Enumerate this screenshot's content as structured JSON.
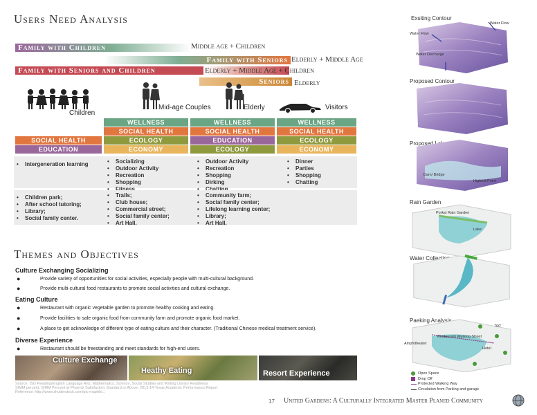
{
  "title": "Users Need Analysis",
  "bars": [
    {
      "label": "Family with Children",
      "desc": "Middle age + Children"
    },
    {
      "label": "Family with Seniors",
      "desc": "Elderly + Middle Age"
    },
    {
      "label": "Family with Seniors and Children",
      "desc": "Elderly + Middle Age + Children"
    },
    {
      "label": "Seniors",
      "desc": "Elderly"
    }
  ],
  "groups": {
    "children": "Children",
    "couples": "Mid-age Couples",
    "elderly": "Elderly",
    "visitors": "Visitors"
  },
  "tags": {
    "wellness": "WELLNESS",
    "social_health": "SOCIAL HEALTH",
    "ecology": "ECOLOGY",
    "education": "EDUCATION",
    "economy": "ECONOMY"
  },
  "activities": {
    "children": [
      "Intergeneration learning"
    ],
    "couples": [
      "Socializing",
      "Outdoor Activity",
      "Recreation",
      "Shopping",
      "Fitness"
    ],
    "elderly": [
      "Outdoor Activity",
      "Recreation",
      "Shopping",
      "Dirking",
      "Chatting"
    ],
    "visitors": [
      "Dinner",
      "Parties",
      "Shopping",
      "Chatting"
    ]
  },
  "facilities": {
    "children": [
      "Children park;",
      "After school tutoring;",
      "Library;",
      "Social family center."
    ],
    "couples": [
      "Trails;",
      "Club house;",
      "Commercial street;",
      "Social family center;",
      "Art Hall."
    ],
    "elderly": [
      "Community farm;",
      "Social family center;",
      "Lifelong learning center;",
      "Library;",
      "Art Hall."
    ]
  },
  "themes_title": "Themes and Objectives",
  "themes": [
    {
      "heading": "Culture Exchanging Socializing",
      "items": [
        "Provide variety of  opportunities for social activities, especially people with multi-cultural background.",
        "Provide multi-cultural food restaurants to promote  social activities and cultural exchange."
      ]
    },
    {
      "heading": "Eating Culture",
      "items": [
        "Restaurant with organic vegetable garden to promote healthy cooking and eating.",
        "Provide facilities to sale organic food from community farm and promote organic food market.",
        "A place to get acknowledge of different type of eating culture and their character. (Traditional Chinese medical treatment service)."
      ]
    },
    {
      "heading": "Diverse Experience",
      "items": [
        "Restaurant should be freestanding and meet standards for high-end users."
      ]
    }
  ],
  "photos": [
    "Culture Exchange",
    "Heathy Eating",
    "Resort Experience"
  ],
  "sources": [
    "Source: ISO Reading/English Language Arts, Mathematics, Science, Social Studies and Writing Library Readiness",
    "SIMM percent, SIMM Percent at Phoenix Satisfactory Standard or Above, 2013-14 Texas Academic Performance Report",
    "Reference: http://www.shutterstock.com/pic-maphh/..."
  ],
  "page_number": "17",
  "footer": "United Gardens: A Culturally Integrated Master Planed Community",
  "analysis": [
    {
      "title": "Exsiting Contour",
      "labels": [
        "Water Flow",
        "Water Flow",
        "Water Discharge"
      ]
    },
    {
      "title": "Proposed Contour",
      "labels": []
    },
    {
      "title": "Proposed Lake",
      "labels": [
        "Dam/ Bridge",
        "Highest Point"
      ]
    },
    {
      "title": "Rain Garden",
      "labels": [
        "Porkst Rain Garden",
        "Lake"
      ]
    },
    {
      "title": "Water Collection",
      "labels": []
    },
    {
      "title": "Paeking Analysis",
      "labels": [
        "Restaurant Walking Street",
        "Amphitheater",
        "Hotel",
        "700'"
      ]
    }
  ],
  "legend": [
    "Open Space",
    "Drop Off",
    "Protected Walking Way",
    "Circulation from Parking and garage"
  ],
  "colors": {
    "green": "#6aa584",
    "orange": "#e2763f",
    "olive": "#8f9a3f",
    "purple": "#9a679b",
    "yellow": "#e9b55c"
  }
}
